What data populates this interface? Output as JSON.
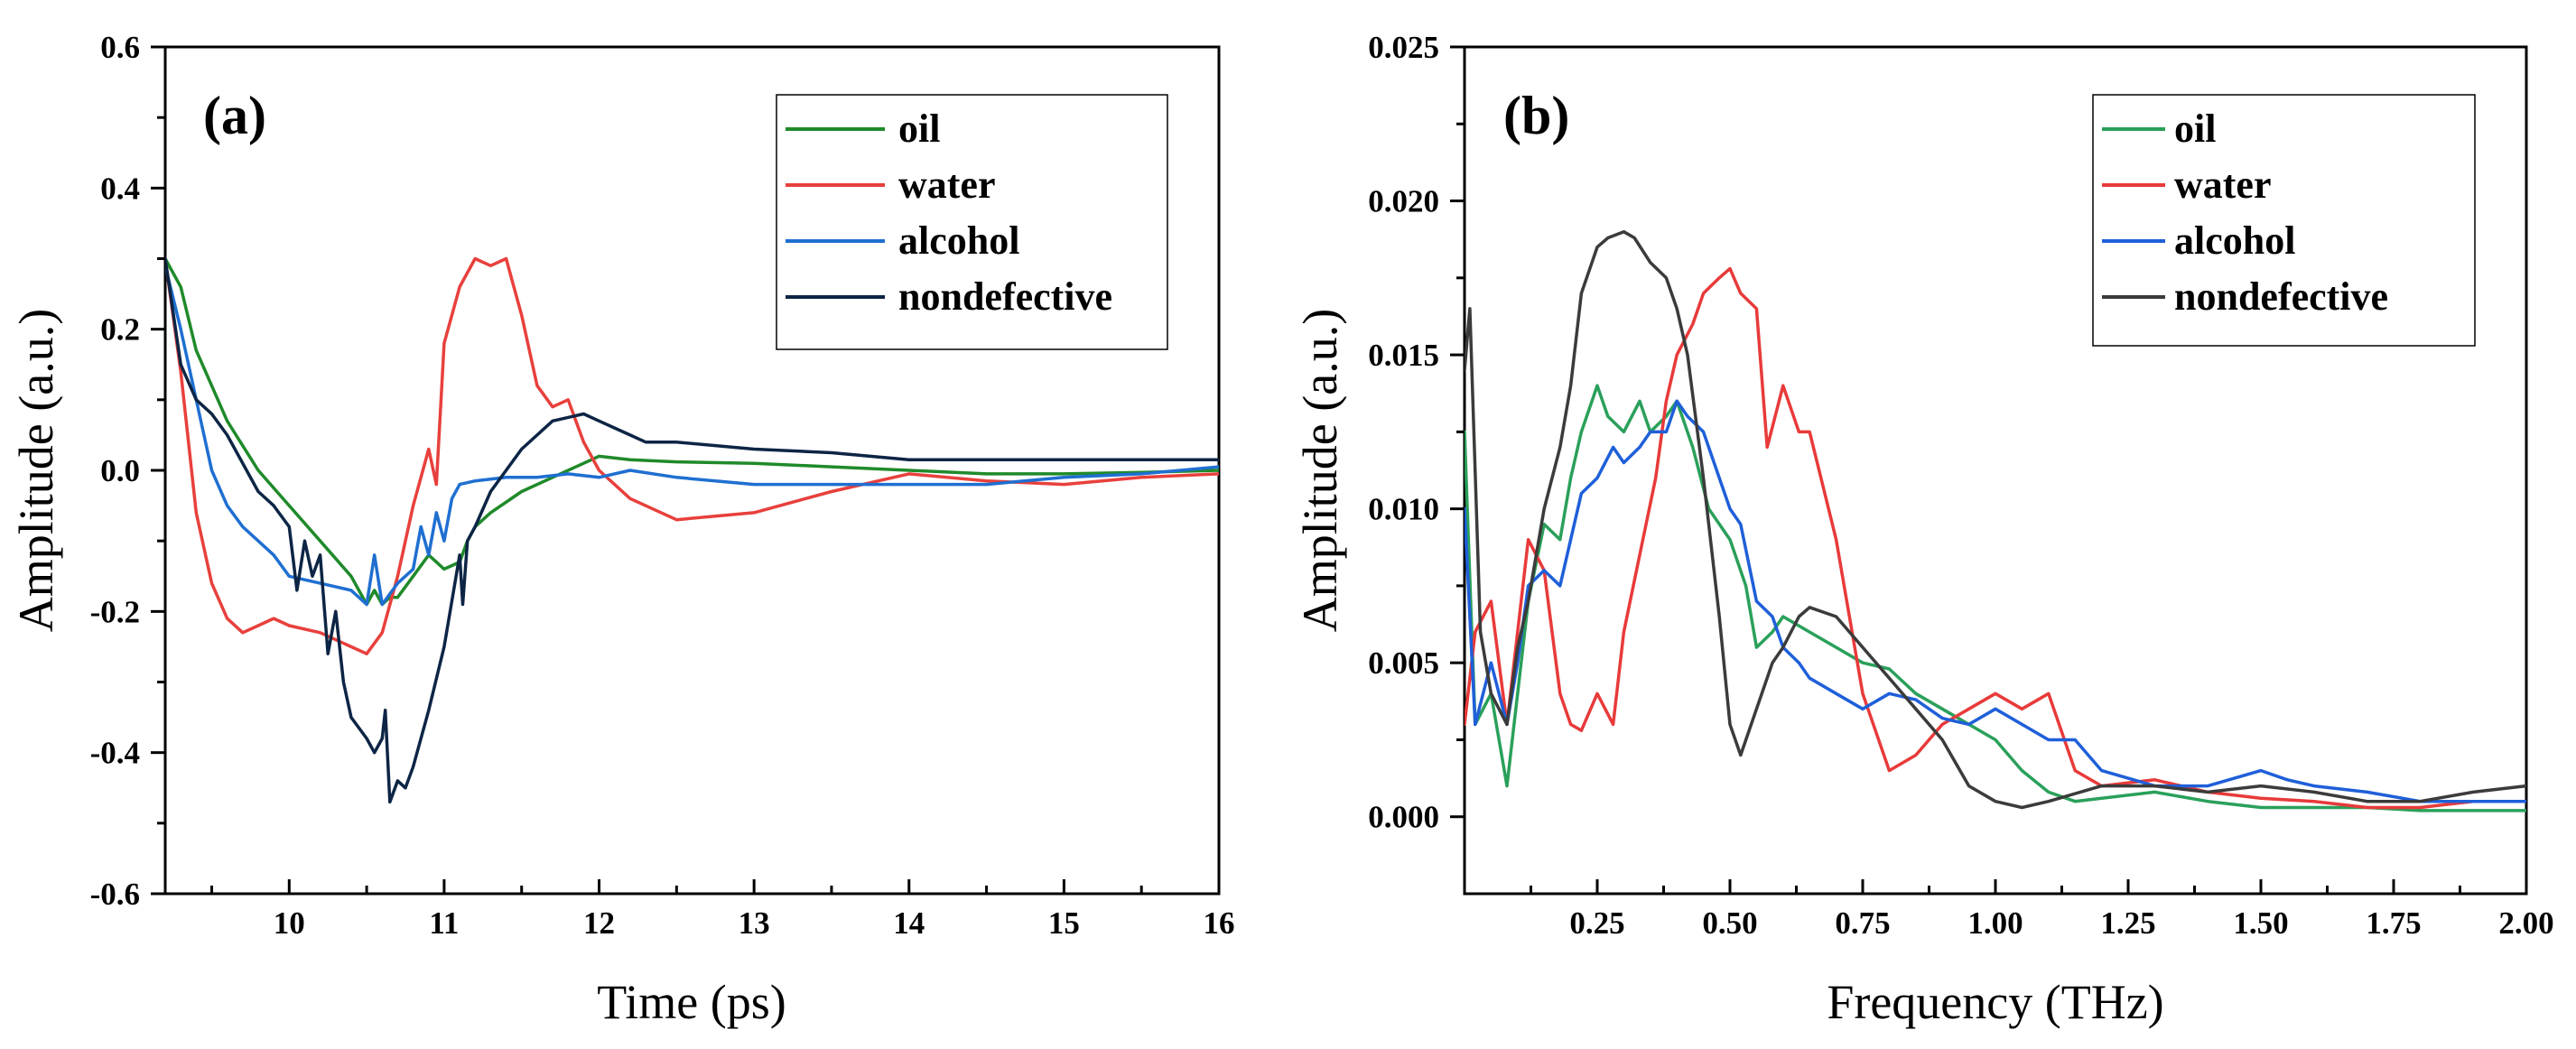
{
  "chart_data": [
    {
      "panel": "(a)",
      "type": "line",
      "xlabel": "Time (ps)",
      "ylabel": "Amplitude (a.u.)",
      "xlim": [
        9.2,
        16
      ],
      "ylim": [
        -0.6,
        0.6
      ],
      "xticks": [
        10,
        11,
        12,
        13,
        14,
        15,
        16
      ],
      "yticks": [
        -0.6,
        -0.4,
        -0.2,
        0.0,
        0.2,
        0.4,
        0.6
      ],
      "xtick_labels": [
        "10",
        "11",
        "12",
        "13",
        "14",
        "15",
        "16"
      ],
      "ytick_labels": [
        "-0.6",
        "-0.4",
        "-0.2",
        "0.0",
        "0.2",
        "0.4",
        "0.6"
      ],
      "legend_position": "top-right",
      "series": [
        {
          "name": "oil",
          "color": "#1f8a2a",
          "x": [
            9.2,
            9.3,
            9.4,
            9.6,
            9.8,
            10.0,
            10.2,
            10.4,
            10.5,
            10.55,
            10.6,
            10.65,
            10.7,
            10.8,
            10.9,
            11.0,
            11.1,
            11.15,
            11.2,
            11.3,
            11.5,
            11.7,
            11.9,
            12.0,
            12.2,
            12.5,
            13.0,
            13.5,
            14.0,
            14.5,
            15.0,
            15.5,
            16.0
          ],
          "y": [
            0.3,
            0.26,
            0.17,
            0.07,
            0.0,
            -0.05,
            -0.1,
            -0.15,
            -0.19,
            -0.17,
            -0.19,
            -0.18,
            -0.18,
            -0.15,
            -0.12,
            -0.14,
            -0.13,
            -0.1,
            -0.08,
            -0.06,
            -0.03,
            -0.01,
            0.01,
            0.02,
            0.015,
            0.012,
            0.01,
            0.005,
            0.0,
            -0.005,
            -0.005,
            -0.003,
            0.0
          ]
        },
        {
          "name": "water",
          "color": "#e8403c",
          "x": [
            9.2,
            9.3,
            9.4,
            9.5,
            9.6,
            9.7,
            9.8,
            9.9,
            10.0,
            10.2,
            10.4,
            10.5,
            10.6,
            10.7,
            10.8,
            10.9,
            10.95,
            11.0,
            11.1,
            11.2,
            11.3,
            11.4,
            11.45,
            11.5,
            11.6,
            11.7,
            11.8,
            11.9,
            12.0,
            12.2,
            12.5,
            13.0,
            13.5,
            14.0,
            14.5,
            15.0,
            15.5,
            16.0
          ],
          "y": [
            0.3,
            0.14,
            -0.06,
            -0.16,
            -0.21,
            -0.23,
            -0.22,
            -0.21,
            -0.22,
            -0.23,
            -0.25,
            -0.26,
            -0.23,
            -0.15,
            -0.05,
            0.03,
            -0.02,
            0.18,
            0.26,
            0.3,
            0.29,
            0.3,
            0.26,
            0.22,
            0.12,
            0.09,
            0.1,
            0.04,
            0.0,
            -0.04,
            -0.07,
            -0.06,
            -0.03,
            -0.005,
            -0.015,
            -0.02,
            -0.01,
            -0.005
          ]
        },
        {
          "name": "alcohol",
          "color": "#1f6fd1",
          "x": [
            9.2,
            9.3,
            9.4,
            9.5,
            9.6,
            9.7,
            9.8,
            9.9,
            10.0,
            10.2,
            10.4,
            10.5,
            10.55,
            10.6,
            10.7,
            10.8,
            10.85,
            10.9,
            10.95,
            11.0,
            11.05,
            11.1,
            11.2,
            11.4,
            11.6,
            11.8,
            12.0,
            12.2,
            12.5,
            13.0,
            13.5,
            14.0,
            14.5,
            15.0,
            15.5,
            16.0
          ],
          "y": [
            0.29,
            0.2,
            0.1,
            0.0,
            -0.05,
            -0.08,
            -0.1,
            -0.12,
            -0.15,
            -0.16,
            -0.17,
            -0.19,
            -0.12,
            -0.19,
            -0.16,
            -0.14,
            -0.08,
            -0.12,
            -0.06,
            -0.1,
            -0.04,
            -0.02,
            -0.015,
            -0.01,
            -0.01,
            -0.005,
            -0.01,
            0.0,
            -0.01,
            -0.02,
            -0.02,
            -0.02,
            -0.02,
            -0.01,
            -0.005,
            0.005
          ]
        },
        {
          "name": "nondefective",
          "color": "#0d2545",
          "x": [
            9.2,
            9.3,
            9.4,
            9.5,
            9.6,
            9.8,
            9.9,
            10.0,
            10.05,
            10.1,
            10.15,
            10.2,
            10.25,
            10.3,
            10.35,
            10.4,
            10.5,
            10.55,
            10.6,
            10.62,
            10.65,
            10.7,
            10.75,
            10.8,
            10.9,
            11.0,
            11.1,
            11.12,
            11.15,
            11.2,
            11.3,
            11.5,
            11.7,
            11.9,
            12.0,
            12.1,
            12.2,
            12.3,
            12.5,
            13.0,
            13.5,
            14.0,
            14.5,
            15.0,
            15.5,
            16.0
          ],
          "y": [
            0.3,
            0.15,
            0.1,
            0.08,
            0.05,
            -0.03,
            -0.05,
            -0.08,
            -0.17,
            -0.1,
            -0.15,
            -0.12,
            -0.26,
            -0.2,
            -0.3,
            -0.35,
            -0.38,
            -0.4,
            -0.38,
            -0.34,
            -0.47,
            -0.44,
            -0.45,
            -0.42,
            -0.34,
            -0.25,
            -0.12,
            -0.19,
            -0.1,
            -0.08,
            -0.03,
            0.03,
            0.07,
            0.08,
            0.07,
            0.06,
            0.05,
            0.04,
            0.04,
            0.03,
            0.025,
            0.015,
            0.015,
            0.015,
            0.015,
            0.015
          ]
        }
      ]
    },
    {
      "panel": "(b)",
      "type": "line",
      "xlabel": "Frequency (THz)",
      "ylabel": "Amplitude (a.u.)",
      "xlim": [
        0.0,
        2.0
      ],
      "ylim": [
        -0.0025,
        0.025
      ],
      "xticks": [
        0.25,
        0.5,
        0.75,
        1.0,
        1.25,
        1.5,
        1.75,
        2.0
      ],
      "yticks": [
        0.0,
        0.005,
        0.01,
        0.015,
        0.02,
        0.025
      ],
      "xtick_labels": [
        "0.25",
        "0.50",
        "0.75",
        "1.00",
        "1.25",
        "1.50",
        "1.75",
        "2.00"
      ],
      "ytick_labels": [
        "0.000",
        "0.005",
        "0.010",
        "0.015",
        "0.020",
        "0.025"
      ],
      "legend_position": "top-right",
      "series": [
        {
          "name": "oil",
          "color": "#2aa05a",
          "x": [
            0.0,
            0.02,
            0.05,
            0.08,
            0.1,
            0.12,
            0.15,
            0.18,
            0.2,
            0.22,
            0.25,
            0.27,
            0.3,
            0.33,
            0.35,
            0.38,
            0.4,
            0.43,
            0.46,
            0.5,
            0.53,
            0.55,
            0.58,
            0.6,
            0.65,
            0.7,
            0.75,
            0.8,
            0.85,
            0.9,
            0.95,
            1.0,
            1.05,
            1.1,
            1.15,
            1.2,
            1.3,
            1.4,
            1.5,
            1.6,
            1.7,
            1.8,
            1.9,
            2.0
          ],
          "y": [
            0.0125,
            0.003,
            0.004,
            0.001,
            0.004,
            0.007,
            0.0095,
            0.009,
            0.011,
            0.0125,
            0.014,
            0.013,
            0.0125,
            0.0135,
            0.0125,
            0.013,
            0.0135,
            0.012,
            0.01,
            0.009,
            0.0075,
            0.0055,
            0.006,
            0.0065,
            0.006,
            0.0055,
            0.005,
            0.0048,
            0.004,
            0.0035,
            0.003,
            0.0025,
            0.0015,
            0.0008,
            0.0005,
            0.0006,
            0.0008,
            0.0005,
            0.0003,
            0.0003,
            0.0003,
            0.0002,
            0.0002,
            0.0002
          ]
        },
        {
          "name": "water",
          "color": "#e83a3a",
          "x": [
            0.0,
            0.02,
            0.05,
            0.08,
            0.1,
            0.12,
            0.15,
            0.18,
            0.2,
            0.22,
            0.25,
            0.28,
            0.3,
            0.33,
            0.36,
            0.38,
            0.4,
            0.43,
            0.45,
            0.48,
            0.5,
            0.52,
            0.55,
            0.57,
            0.6,
            0.63,
            0.65,
            0.7,
            0.75,
            0.8,
            0.85,
            0.9,
            0.95,
            1.0,
            1.05,
            1.1,
            1.15,
            1.2,
            1.3,
            1.4,
            1.5,
            1.6,
            1.7,
            1.8,
            1.9,
            2.0
          ],
          "y": [
            0.003,
            0.006,
            0.007,
            0.003,
            0.006,
            0.009,
            0.008,
            0.004,
            0.003,
            0.0028,
            0.004,
            0.003,
            0.006,
            0.0085,
            0.011,
            0.0135,
            0.015,
            0.016,
            0.017,
            0.0175,
            0.0178,
            0.017,
            0.0165,
            0.012,
            0.014,
            0.0125,
            0.0125,
            0.009,
            0.004,
            0.0015,
            0.002,
            0.003,
            0.0035,
            0.004,
            0.0035,
            0.004,
            0.0015,
            0.001,
            0.0012,
            0.0008,
            0.0006,
            0.0005,
            0.0003,
            0.0003,
            0.0005,
            0.0005
          ]
        },
        {
          "name": "alcohol",
          "color": "#1f5fd9",
          "x": [
            0.0,
            0.02,
            0.05,
            0.08,
            0.1,
            0.12,
            0.15,
            0.18,
            0.2,
            0.22,
            0.25,
            0.28,
            0.3,
            0.33,
            0.35,
            0.38,
            0.4,
            0.42,
            0.45,
            0.48,
            0.5,
            0.52,
            0.55,
            0.58,
            0.6,
            0.63,
            0.65,
            0.7,
            0.75,
            0.8,
            0.85,
            0.9,
            0.95,
            1.0,
            1.05,
            1.1,
            1.15,
            1.2,
            1.3,
            1.4,
            1.5,
            1.55,
            1.6,
            1.7,
            1.8,
            1.9,
            2.0
          ],
          "y": [
            0.01,
            0.003,
            0.005,
            0.003,
            0.005,
            0.0075,
            0.008,
            0.0075,
            0.009,
            0.0105,
            0.011,
            0.012,
            0.0115,
            0.012,
            0.0125,
            0.0125,
            0.0135,
            0.013,
            0.0125,
            0.011,
            0.01,
            0.0095,
            0.007,
            0.0065,
            0.0055,
            0.005,
            0.0045,
            0.004,
            0.0035,
            0.004,
            0.0038,
            0.0032,
            0.003,
            0.0035,
            0.003,
            0.0025,
            0.0025,
            0.0015,
            0.001,
            0.001,
            0.0015,
            0.0012,
            0.001,
            0.0008,
            0.0005,
            0.0005,
            0.0005
          ]
        },
        {
          "name": "nondefective",
          "color": "#3b3b3b",
          "x": [
            0.0,
            0.01,
            0.03,
            0.05,
            0.08,
            0.1,
            0.12,
            0.15,
            0.18,
            0.2,
            0.22,
            0.25,
            0.27,
            0.3,
            0.32,
            0.35,
            0.38,
            0.4,
            0.42,
            0.45,
            0.48,
            0.5,
            0.52,
            0.55,
            0.58,
            0.6,
            0.63,
            0.65,
            0.7,
            0.75,
            0.8,
            0.85,
            0.9,
            0.95,
            1.0,
            1.05,
            1.1,
            1.2,
            1.3,
            1.4,
            1.5,
            1.6,
            1.7,
            1.8,
            1.9,
            2.0
          ],
          "y": [
            0.0145,
            0.0165,
            0.006,
            0.004,
            0.003,
            0.0055,
            0.007,
            0.01,
            0.012,
            0.014,
            0.017,
            0.0185,
            0.0188,
            0.019,
            0.0188,
            0.018,
            0.0175,
            0.0165,
            0.015,
            0.011,
            0.0065,
            0.003,
            0.002,
            0.0035,
            0.005,
            0.0055,
            0.0065,
            0.0068,
            0.0065,
            0.0055,
            0.0045,
            0.0035,
            0.0025,
            0.001,
            0.0005,
            0.0003,
            0.0005,
            0.001,
            0.001,
            0.0008,
            0.001,
            0.0008,
            0.0005,
            0.0005,
            0.0008,
            0.001
          ]
        }
      ]
    }
  ]
}
